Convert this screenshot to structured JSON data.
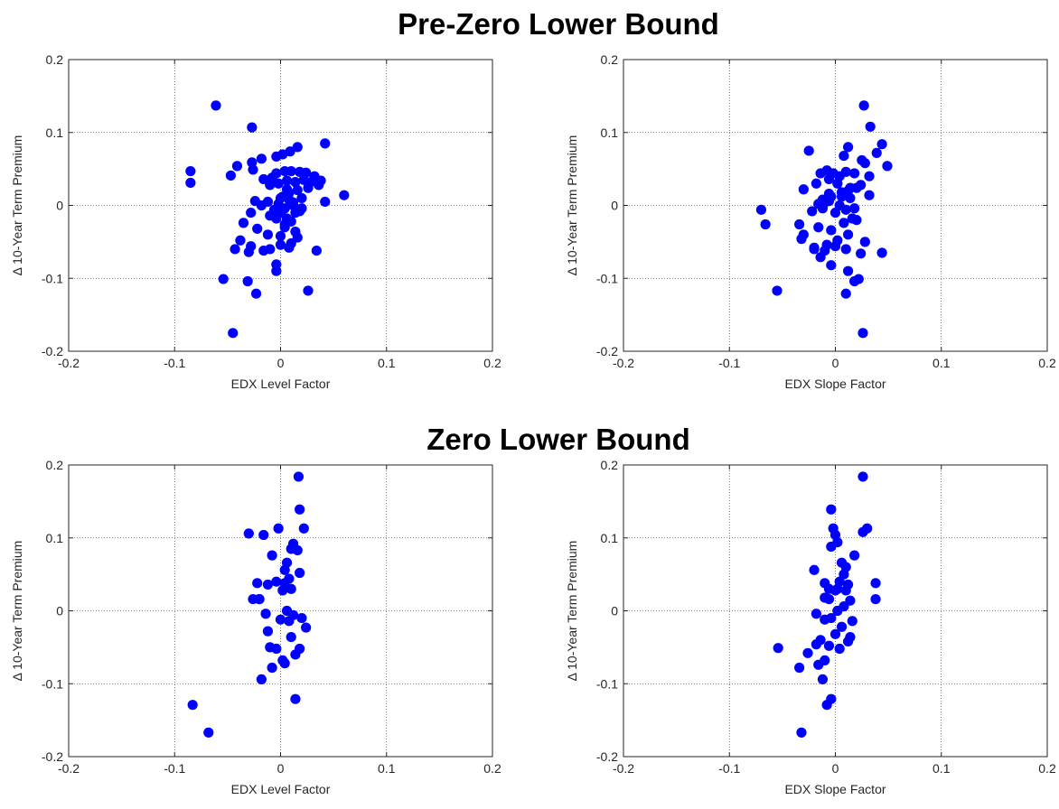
{
  "section_titles": [
    "Pre-Zero Lower Bound",
    "Zero Lower Bound"
  ],
  "colors": {
    "marker": "#0000ff",
    "axis": "#262626",
    "grid": "#262626",
    "background": "#ffffff"
  },
  "chart_data": [
    {
      "type": "scatter",
      "section": "Pre-Zero Lower Bound",
      "xlabel": "EDX Level Factor",
      "ylabel": "Δ 10-Year Term Premium",
      "xlim": [
        -0.2,
        0.2
      ],
      "ylim": [
        -0.2,
        0.2
      ],
      "xticks": [
        "-0.2",
        "-0.1",
        "0",
        "0.1",
        "0.2"
      ],
      "yticks": [
        "-0.2",
        "-0.1",
        "0",
        "0.1",
        "0.2"
      ],
      "grid": true,
      "x": [
        -0.061,
        -0.027,
        -0.085,
        -0.085,
        -0.047,
        -0.041,
        -0.027,
        -0.026,
        -0.018,
        -0.004,
        0.002,
        0.009,
        0.016,
        0.042,
        -0.016,
        -0.008,
        -0.004,
        0.004,
        0.01,
        0.018,
        0.024,
        0.032,
        -0.01,
        -0.002,
        0.006,
        0.014,
        0.022,
        0.03,
        0.038,
        -0.024,
        -0.012,
        0.0,
        0.008,
        0.016,
        0.026,
        0.036,
        0.06,
        -0.028,
        -0.018,
        0.004,
        0.012,
        0.02,
        0.042,
        -0.035,
        -0.01,
        0.0,
        0.006,
        0.014,
        0.02,
        -0.038,
        -0.022,
        -0.012,
        -0.004,
        0.004,
        0.01,
        -0.043,
        -0.028,
        -0.016,
        0.0,
        0.008,
        0.016,
        0.034,
        -0.03,
        -0.01,
        0.0,
        0.01,
        -0.004,
        -0.004,
        -0.054,
        -0.031,
        -0.023,
        0.026,
        -0.045,
        0.002,
        0.006,
        0.012,
        0.018,
        -0.002,
        0.008,
        0.004,
        -0.006,
        0.014
      ],
      "y": [
        0.137,
        0.107,
        0.047,
        0.031,
        0.041,
        0.054,
        0.059,
        0.049,
        0.064,
        0.067,
        0.07,
        0.074,
        0.08,
        0.085,
        0.036,
        0.038,
        0.044,
        0.047,
        0.047,
        0.046,
        0.045,
        0.04,
        0.028,
        0.03,
        0.034,
        0.032,
        0.035,
        0.033,
        0.034,
        0.006,
        0.005,
        0.01,
        0.017,
        0.021,
        0.024,
        0.028,
        0.014,
        -0.01,
        0.0,
        -0.004,
        0.004,
        0.01,
        0.005,
        -0.024,
        -0.014,
        -0.01,
        -0.018,
        -0.01,
        -0.004,
        -0.048,
        -0.032,
        -0.04,
        -0.018,
        -0.03,
        -0.022,
        -0.06,
        -0.056,
        -0.062,
        -0.054,
        -0.058,
        -0.044,
        -0.062,
        -0.064,
        -0.06,
        -0.042,
        -0.052,
        -0.081,
        -0.09,
        -0.101,
        -0.104,
        -0.121,
        -0.117,
        -0.175,
        0.012,
        0.022,
        0.0,
        -0.008,
        0.002,
        0.008,
        -0.026,
        -0.006,
        -0.036
      ]
    },
    {
      "type": "scatter",
      "section": "Pre-Zero Lower Bound",
      "xlabel": "EDX Slope Factor",
      "ylabel": "Δ 10-Year Term Premium",
      "xlim": [
        -0.2,
        0.2
      ],
      "ylim": [
        -0.2,
        0.2
      ],
      "xticks": [
        "-0.2",
        "-0.1",
        "0",
        "0.1",
        "0.2"
      ],
      "yticks": [
        "-0.2",
        "-0.1",
        "0",
        "0.1",
        "0.2"
      ],
      "grid": true,
      "x": [
        0.027,
        0.033,
        0.044,
        0.039,
        0.049,
        0.012,
        -0.025,
        0.025,
        0.008,
        0.028,
        0.032,
        -0.014,
        -0.008,
        -0.002,
        0.004,
        0.01,
        0.018,
        -0.03,
        -0.018,
        -0.006,
        0.002,
        0.014,
        0.024,
        -0.012,
        -0.004,
        0.006,
        0.012,
        0.02,
        0.032,
        -0.07,
        -0.066,
        -0.034,
        -0.022,
        -0.012,
        0.0,
        0.01,
        0.018,
        -0.03,
        -0.016,
        -0.004,
        0.008,
        0.016,
        -0.032,
        -0.02,
        -0.008,
        0.002,
        0.012,
        0.044,
        -0.02,
        -0.01,
        0.0,
        0.01,
        0.024,
        -0.004,
        0.012,
        -0.014,
        0.018,
        -0.055,
        0.022,
        0.01,
        0.026,
        -0.01,
        -0.006,
        0.004,
        0.014,
        -0.016,
        -0.006,
        0.006,
        0.02,
        0.028
      ],
      "y": [
        0.137,
        0.108,
        0.084,
        0.072,
        0.054,
        0.08,
        0.075,
        0.062,
        0.068,
        0.058,
        0.04,
        0.044,
        0.048,
        0.044,
        0.04,
        0.046,
        0.044,
        0.022,
        0.03,
        0.036,
        0.03,
        0.024,
        0.028,
        0.008,
        0.012,
        0.018,
        0.02,
        0.024,
        0.014,
        -0.006,
        -0.026,
        -0.026,
        -0.008,
        -0.004,
        -0.01,
        -0.006,
        -0.004,
        -0.04,
        -0.03,
        -0.034,
        -0.024,
        -0.018,
        -0.046,
        -0.06,
        -0.054,
        -0.048,
        -0.04,
        -0.065,
        -0.058,
        -0.062,
        -0.056,
        -0.06,
        -0.066,
        -0.082,
        -0.09,
        -0.071,
        -0.104,
        -0.117,
        -0.101,
        -0.121,
        -0.175,
        0.004,
        0.006,
        0.0,
        0.01,
        0.002,
        0.016,
        0.012,
        -0.02,
        -0.05
      ]
    },
    {
      "type": "scatter",
      "section": "Zero Lower Bound",
      "xlabel": "EDX Level Factor",
      "ylabel": "Δ 10-Year Term Premium",
      "xlim": [
        -0.2,
        0.2
      ],
      "ylim": [
        -0.2,
        0.2
      ],
      "xticks": [
        "-0.2",
        "-0.1",
        "0",
        "0.1",
        "0.2"
      ],
      "yticks": [
        "-0.2",
        "-0.1",
        "0",
        "0.1",
        "0.2"
      ],
      "grid": true,
      "x": [
        0.017,
        0.018,
        -0.03,
        -0.016,
        -0.002,
        0.022,
        0.012,
        0.01,
        0.016,
        -0.008,
        0.006,
        0.004,
        0.018,
        -0.022,
        -0.012,
        -0.004,
        0.004,
        0.01,
        0.002,
        0.008,
        -0.02,
        -0.026,
        0.006,
        0.012,
        -0.014,
        0.0,
        0.02,
        0.008,
        -0.012,
        0.024,
        -0.01,
        -0.004,
        0.018,
        0.01,
        0.002,
        -0.018,
        0.014,
        -0.083,
        -0.068,
        -0.02,
        -0.008,
        0.004,
        0.014
      ],
      "y": [
        0.184,
        0.139,
        0.106,
        0.104,
        0.113,
        0.113,
        0.092,
        0.085,
        0.083,
        0.076,
        0.066,
        0.056,
        0.052,
        0.038,
        0.036,
        0.04,
        0.038,
        0.03,
        0.028,
        0.044,
        0.016,
        0.016,
        0.0,
        -0.006,
        -0.004,
        -0.012,
        -0.01,
        -0.014,
        -0.028,
        -0.023,
        -0.05,
        -0.052,
        -0.052,
        -0.036,
        -0.068,
        -0.094,
        -0.06,
        -0.129,
        -0.167,
        0.016,
        -0.078,
        -0.072,
        -0.121
      ]
    },
    {
      "type": "scatter",
      "section": "Zero Lower Bound",
      "xlabel": "EDX Slope Factor",
      "ylabel": "Δ 10-Year Term Premium",
      "xlim": [
        -0.2,
        0.2
      ],
      "ylim": [
        -0.2,
        0.2
      ],
      "xticks": [
        "-0.2",
        "-0.1",
        "0",
        "0.1",
        "0.2"
      ],
      "yticks": [
        "-0.2",
        "-0.1",
        "0",
        "0.1",
        "0.2"
      ],
      "grid": true,
      "x": [
        0.026,
        -0.004,
        0.03,
        0.026,
        -0.002,
        0.0,
        0.002,
        -0.004,
        0.018,
        -0.02,
        0.006,
        0.01,
        0.008,
        -0.01,
        -0.006,
        0.0,
        0.004,
        0.012,
        0.01,
        -0.01,
        0.038,
        -0.006,
        0.014,
        0.002,
        0.008,
        0.038,
        -0.018,
        -0.01,
        -0.004,
        0.006,
        0.016,
        -0.014,
        0.0,
        0.014,
        -0.054,
        -0.026,
        -0.018,
        -0.006,
        0.004,
        0.012,
        -0.034,
        -0.016,
        -0.012,
        -0.01,
        -0.004,
        -0.008,
        -0.032,
        0.002
      ],
      "y": [
        0.184,
        0.139,
        0.113,
        0.108,
        0.113,
        0.104,
        0.094,
        0.088,
        0.076,
        0.056,
        0.066,
        0.06,
        0.05,
        0.038,
        0.03,
        0.028,
        0.04,
        0.036,
        0.028,
        0.018,
        0.038,
        0.016,
        0.014,
        0.0,
        0.006,
        0.016,
        -0.004,
        -0.012,
        -0.01,
        -0.022,
        -0.014,
        -0.04,
        -0.032,
        -0.036,
        -0.051,
        -0.058,
        -0.046,
        -0.048,
        -0.052,
        -0.042,
        -0.078,
        -0.074,
        -0.094,
        -0.068,
        -0.121,
        -0.129,
        -0.167,
        0.03
      ]
    }
  ]
}
